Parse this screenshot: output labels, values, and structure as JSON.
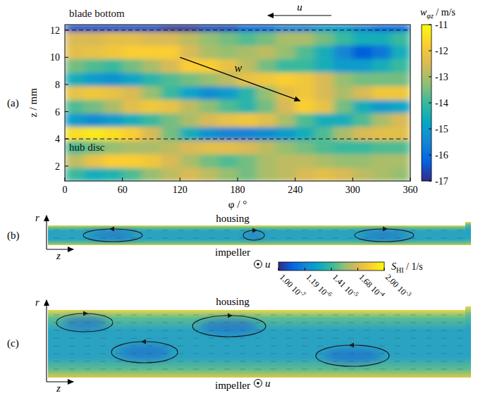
{
  "chart_data": {
    "type": "heatmap",
    "panel_label": "(a)",
    "xlabel": "φ / °",
    "ylabel": "z / mm",
    "xlim": [
      0,
      360
    ],
    "xticks": [
      0,
      60,
      120,
      180,
      240,
      300,
      360
    ],
    "ylim": [
      0.9,
      12.4
    ],
    "yticks": [
      2,
      4,
      6,
      8,
      10,
      12
    ],
    "x_edges": [
      0,
      20,
      40,
      60,
      80,
      100,
      120,
      140,
      160,
      180,
      200,
      220,
      240,
      260,
      280,
      300,
      320,
      340,
      360
    ],
    "y_edges": [
      0.9,
      1.9,
      2.9,
      3.9,
      4.9,
      5.9,
      6.9,
      7.9,
      8.9,
      9.9,
      10.9,
      11.9,
      12.4
    ],
    "cells": [
      [
        -14,
        -14.5,
        -14.3,
        -13.8,
        -13.2,
        -12.8,
        -12.5,
        -12.8,
        -13.2,
        -13.5,
        -13,
        -12.8,
        -12.5,
        -12.3,
        -12.5,
        -12.8,
        -13,
        -13.2
      ],
      [
        -12.8,
        -12.2,
        -11.8,
        -11.8,
        -12,
        -12.5,
        -13,
        -13.5,
        -13.8,
        -13.5,
        -13,
        -12.8,
        -12.8,
        -13,
        -13.2,
        -13.2,
        -13,
        -13
      ],
      [
        -13.8,
        -13.5,
        -13.2,
        -13,
        -13,
        -12.8,
        -12.5,
        -12.3,
        -12.3,
        -12.5,
        -12.8,
        -13.2,
        -13.5,
        -13.8,
        -14,
        -14,
        -13.8,
        -13.8
      ],
      [
        -11.5,
        -11.3,
        -11.5,
        -11.8,
        -12.5,
        -13.5,
        -14.5,
        -15.2,
        -15.5,
        -15.5,
        -15.3,
        -15,
        -14.5,
        -13.8,
        -13,
        -12.5,
        -12.3,
        -12.3
      ],
      [
        -15,
        -15.3,
        -15,
        -14.5,
        -14,
        -13.5,
        -13,
        -12.5,
        -12.2,
        -12,
        -12.3,
        -13,
        -13.8,
        -14.5,
        -14.5,
        -13.8,
        -13,
        -12.5
      ],
      [
        -13.8,
        -13.5,
        -13,
        -12.3,
        -12,
        -12.2,
        -12.8,
        -13.3,
        -13.8,
        -14.2,
        -13.5,
        -12.5,
        -11.8,
        -12.2,
        -13.5,
        -14.5,
        -15,
        -14.8
      ],
      [
        -12.2,
        -12,
        -12.2,
        -12.5,
        -13.2,
        -14,
        -14.8,
        -15.3,
        -15,
        -14.2,
        -13.2,
        -12.3,
        -12,
        -12.5,
        -13,
        -12.5,
        -12,
        -12
      ],
      [
        -14.5,
        -15,
        -15.2,
        -14.8,
        -14.2,
        -13.8,
        -13.5,
        -13.2,
        -12.8,
        -12.2,
        -12,
        -11.8,
        -12,
        -12.5,
        -13.2,
        -13.5,
        -13.5,
        -13.5
      ],
      [
        -13.5,
        -13.8,
        -14,
        -13.5,
        -13,
        -12.5,
        -11.8,
        -11.8,
        -12.2,
        -12.8,
        -13.5,
        -14,
        -14,
        -14.5,
        -15,
        -15,
        -14.5,
        -14
      ],
      [
        -12.3,
        -12.2,
        -12,
        -11.8,
        -11.8,
        -11.8,
        -12.5,
        -13,
        -13.2,
        -13,
        -12.8,
        -13.2,
        -13.8,
        -14.5,
        -15.5,
        -16.3,
        -15.8,
        -14.5
      ],
      [
        -12.5,
        -12.5,
        -12.3,
        -12.3,
        -12.5,
        -12.5,
        -12.8,
        -13.2,
        -13.5,
        -13.8,
        -13.5,
        -13,
        -13,
        -13.5,
        -14,
        -14.5,
        -14.5,
        -14
      ],
      [
        -16.5,
        -16.5,
        -16.5,
        -16.5,
        -16.5,
        -16.8,
        -16.8,
        -16.5,
        -16.5,
        -16,
        -16,
        -15.5,
        -15.5,
        -15,
        -15,
        -15.5,
        -16,
        -16
      ]
    ],
    "colorbar": {
      "label": "w",
      "label_sub": "φz",
      "unit": "/ m/s",
      "lim": [
        -17,
        -11
      ],
      "ticks": [
        -17,
        -16,
        -15,
        -14,
        -13,
        -12,
        -11
      ]
    },
    "hlines": [
      {
        "value": 4,
        "label": "hub disc"
      },
      {
        "value": 12,
        "label": "blade bottom"
      }
    ],
    "annotations": [
      {
        "text": "w",
        "from": [
          120,
          10
        ],
        "to": [
          245,
          6.8
        ]
      }
    ],
    "top_arrow": "u"
  },
  "diagrams": [
    {
      "panel_label": "(b)",
      "top": "housing",
      "bottom": "impeller",
      "r_axis": "r",
      "z_axis": "z",
      "u": "u"
    },
    {
      "panel_label": "(c)",
      "top": "housing",
      "bottom": "impeller",
      "r_axis": "r",
      "z_axis": "z",
      "u": "u"
    }
  ],
  "shared_colorbar": {
    "label": "S",
    "label_sub": "HI",
    "unit": "/ 1/s",
    "log": true,
    "lim": [
      1e-07,
      0.002
    ],
    "ticks": [
      {
        "value": 1e-07,
        "label": "1.00 10-7"
      },
      {
        "value": 1.19e-06,
        "label": "1.19 10-6"
      },
      {
        "value": 1.41e-05,
        "label": "1.41 10-5"
      },
      {
        "value": 0.000168,
        "label": "1.68 10-4"
      },
      {
        "value": 0.002,
        "label": "2.00 10-3"
      }
    ]
  }
}
